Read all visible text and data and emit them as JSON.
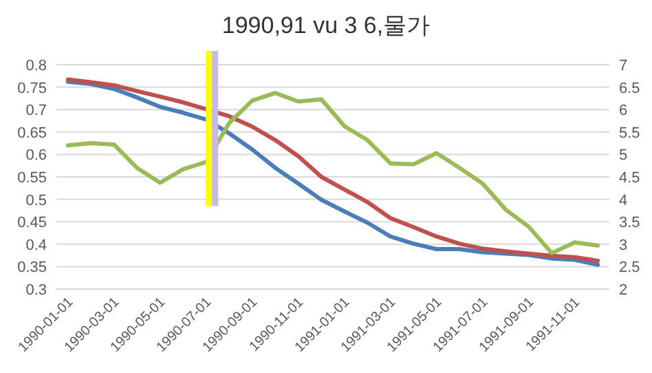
{
  "chart_data": {
    "type": "line",
    "title": "1990,91 vu 3 6,물가",
    "categories": [
      "1990-01-01",
      null,
      "1990-03-01",
      null,
      "1990-05-01",
      null,
      "1990-07-01",
      null,
      "1990-09-01",
      null,
      "1990-11-01",
      null,
      "1991-01-01",
      null,
      "1991-03-01",
      null,
      "1991-05-01",
      null,
      "1991-07-01",
      null,
      "1991-09-01",
      null,
      "1991-11-01",
      null
    ],
    "series": [
      {
        "color": "#4a7ebb",
        "values": [
          0.762,
          0.757,
          0.746,
          0.727,
          0.706,
          0.693,
          0.678,
          0.647,
          0.611,
          0.57,
          0.535,
          0.499,
          0.473,
          0.448,
          0.417,
          0.401,
          0.389,
          0.389,
          0.382,
          0.379,
          0.376,
          0.368,
          0.365,
          0.354
        ]
      },
      {
        "color": "#c0504d",
        "values": [
          0.767,
          0.761,
          0.754,
          0.741,
          0.729,
          0.716,
          0.701,
          0.685,
          0.662,
          0.632,
          0.596,
          0.55,
          0.522,
          0.494,
          0.458,
          0.438,
          0.417,
          0.401,
          0.39,
          0.384,
          0.379,
          0.374,
          0.371,
          0.363
        ]
      },
      {
        "color": "#9bbb59",
        "axis": "y2",
        "values": [
          5.2,
          5.25,
          5.22,
          4.7,
          4.37,
          4.67,
          4.83,
          5.7,
          6.2,
          6.37,
          6.18,
          6.23,
          5.63,
          5.32,
          4.8,
          4.78,
          5.03,
          4.7,
          4.35,
          3.77,
          3.39,
          2.8,
          3.04,
          2.97
        ]
      }
    ],
    "ylim": [
      0.3,
      0.8
    ],
    "yticks": [
      0.3,
      0.35,
      0.4,
      0.45,
      0.5,
      0.55,
      0.6,
      0.65,
      0.7,
      0.75,
      0.8
    ],
    "y2lim": [
      2,
      7
    ],
    "y2ticks": [
      2,
      2.5,
      3,
      3.5,
      4,
      4.5,
      5,
      5.5,
      6,
      6.5,
      7
    ],
    "grid": "y",
    "ref_lines": [
      {
        "axis": "x",
        "value": "1990-07-01",
        "color": "#ffff00"
      },
      {
        "axis": "x",
        "value": "1990-07-01",
        "color": "#c5b9e6"
      }
    ]
  }
}
